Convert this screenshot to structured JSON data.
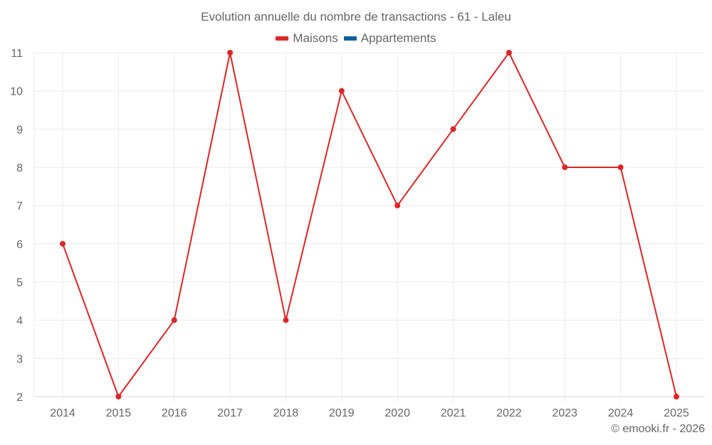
{
  "chart_data": {
    "type": "line",
    "title": "Evolution annuelle du nombre de transactions - 61 - Laleu",
    "xlabel": "",
    "ylabel": "",
    "categories": [
      "2014",
      "2015",
      "2016",
      "2017",
      "2018",
      "2019",
      "2020",
      "2021",
      "2022",
      "2023",
      "2024",
      "2025"
    ],
    "series": [
      {
        "name": "Maisons",
        "color": "#dc2626",
        "values": [
          6,
          2,
          4,
          11,
          4,
          10,
          7,
          9,
          11,
          8,
          8,
          2
        ]
      },
      {
        "name": "Appartements",
        "color": "#0b5f9e",
        "values": []
      }
    ],
    "yticks": [
      2,
      3,
      4,
      5,
      6,
      7,
      8,
      9,
      10,
      11
    ],
    "ylim": [
      2,
      11
    ],
    "grid": true,
    "legend_position": "top"
  },
  "title": "Evolution annuelle du nombre de transactions - 61 - Laleu",
  "legend": [
    {
      "label": "Maisons",
      "color": "#dc2626"
    },
    {
      "label": "Appartements",
      "color": "#0b5f9e"
    }
  ],
  "credit": "© emooki.fr - 2026"
}
